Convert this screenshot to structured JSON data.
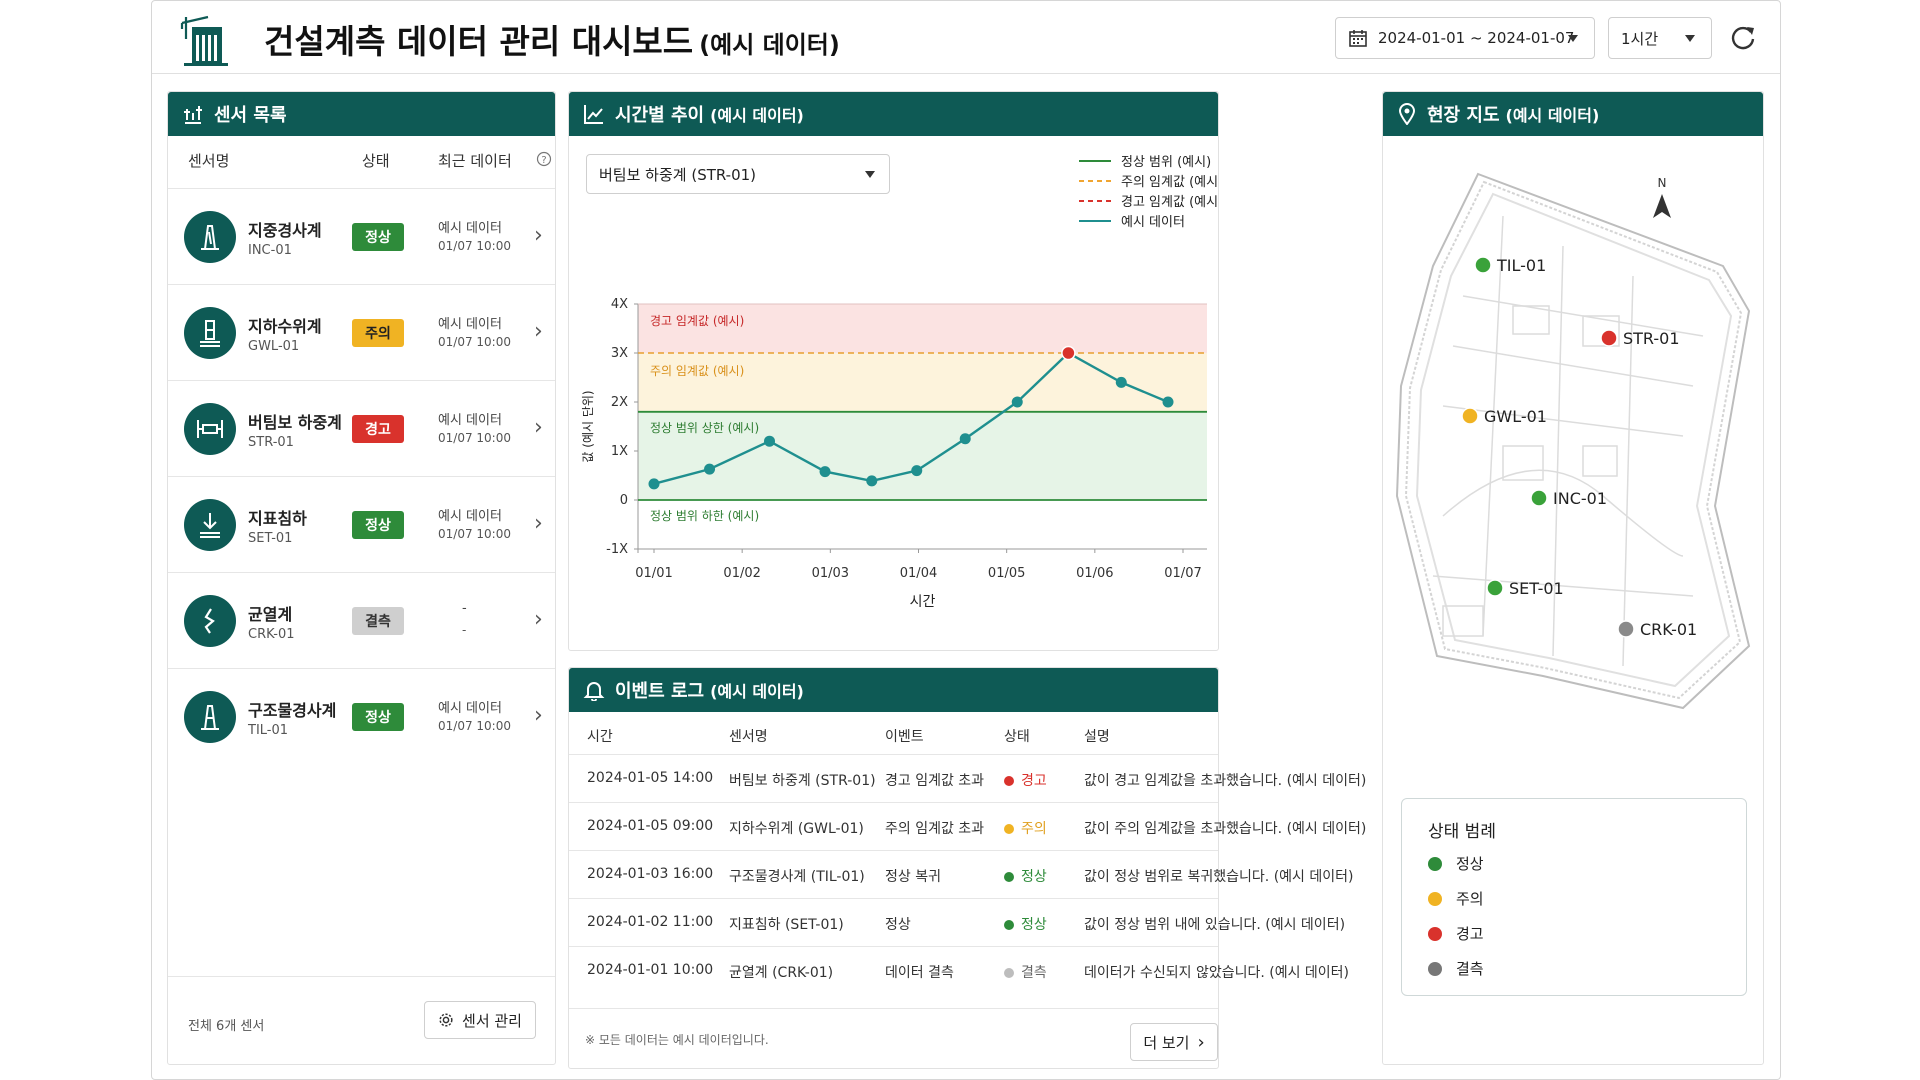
{
  "header": {
    "title": "건설계측 데이터 관리 대시보드",
    "subtitle": "(예시 데이터)",
    "date_range": "2024-01-01 ~ 2024-01-07",
    "interval": "1시간"
  },
  "sensor_panel": {
    "title": "센서 목록",
    "col_name": "센서명",
    "col_status": "상태",
    "col_recent": "최근 데이터",
    "sensors": [
      {
        "name": "지중경사계",
        "code": "INC-01",
        "status": "정상",
        "status_color": "#2e8b3a",
        "d1": "예시 데이터",
        "d2": "01/07 10:00",
        "icon": "inclinometer-icon"
      },
      {
        "name": "지하수위계",
        "code": "GWL-01",
        "status": "주의",
        "status_color": "#f0b323",
        "d1": "예시 데이터",
        "d2": "01/07 10:00",
        "icon": "water-level-icon"
      },
      {
        "name": "버팀보 하중계",
        "code": "STR-01",
        "status": "경고",
        "status_color": "#d9322c",
        "d1": "예시 데이터",
        "d2": "01/07 10:00",
        "icon": "strut-load-icon"
      },
      {
        "name": "지표침하",
        "code": "SET-01",
        "status": "정상",
        "status_color": "#2e8b3a",
        "d1": "예시 데이터",
        "d2": "01/07 10:00",
        "icon": "settlement-icon"
      },
      {
        "name": "균열계",
        "code": "CRK-01",
        "status": "결측",
        "status_color": "#cfcfcf",
        "d1": "-",
        "d2": "-",
        "icon": "crack-icon"
      },
      {
        "name": "구조물경사계",
        "code": "TIL-01",
        "status": "정상",
        "status_color": "#2e8b3a",
        "d1": "예시 데이터",
        "d2": "01/07 10:00",
        "icon": "tilt-icon"
      }
    ],
    "total": "전체 6개 센서",
    "manage_label": "센서 관리"
  },
  "chart_panel": {
    "title": "시간별 추이",
    "subtitle": "(예시 데이터)",
    "selected_sensor": "버팀보 하중계 (STR-01)"
  },
  "chart_data": {
    "type": "line",
    "x_labels": [
      "01/01",
      "01/02",
      "01/03",
      "01/04",
      "01/05",
      "01/06",
      "01/07"
    ],
    "x": [
      0.0,
      0.33,
      0.67,
      1.0,
      1.33,
      1.67,
      2.0,
      2.33,
      2.67,
      3.0,
      3.33,
      3.67,
      4.0,
      4.33,
      4.67,
      5.0,
      5.33,
      5.67,
      6.0
    ],
    "y_ticks": [
      "-1X",
      "0",
      "1X",
      "2X",
      "3X",
      "4X"
    ],
    "ylim": [
      -1,
      4
    ],
    "xlabel": "시간",
    "ylabel": "값 (예시 단위)",
    "series": [
      {
        "name": "예시 데이터",
        "color": "#1f8f8f",
        "x": [
          0.0,
          0.63,
          1.31,
          1.94,
          2.47,
          2.98,
          3.53,
          4.12,
          4.7,
          5.3,
          5.83
        ],
        "values": [
          0.33,
          0.63,
          1.2,
          0.58,
          0.39,
          0.6,
          1.25,
          2.0,
          3.0,
          2.4,
          2.0
        ]
      }
    ],
    "thresholds": {
      "normal_upper": 1.8,
      "normal_lower": 0,
      "caution": 3.0,
      "warning": 4.0
    },
    "bands": [
      {
        "label": "경고 임계값 (예시)",
        "from": 3.0,
        "to": 4.0,
        "color": "#fbe3e2"
      },
      {
        "label": "주의 임계값 (예시)",
        "from": 1.8,
        "to": 3.0,
        "color": "#fdf3dc"
      },
      {
        "label": "정상 범위 상한 (예시)",
        "from": 0,
        "to": 1.8,
        "color": "#e6f4e7"
      }
    ],
    "band_labels": {
      "warning": "경고 임계값 (예시)",
      "caution": "주의 임계값 (예시)",
      "normal_upper": "정상 범위 상한 (예시)",
      "normal_lower": "정상 범위 하한 (예시)"
    },
    "legend": [
      {
        "label": "정상 범위 (예시)",
        "color": "#2e8b3a",
        "style": "solid"
      },
      {
        "label": "주의 임계값 (예시)",
        "color": "#f0a531",
        "style": "dashed"
      },
      {
        "label": "경고 임계값 (예시)",
        "color": "#d9322c",
        "style": "dashed"
      },
      {
        "label": "예시 데이터",
        "color": "#1f8f8f",
        "style": "solid"
      }
    ],
    "legend_position": "top-right"
  },
  "event_panel": {
    "title": "이벤트 로그",
    "subtitle": "(예시 데이터)",
    "columns": [
      "시간",
      "센서명",
      "이벤트",
      "상태",
      "설명"
    ],
    "rows": [
      {
        "time": "2024-01-05 14:00",
        "sensor": "버팀보 하중계 (STR-01)",
        "event": "경고 임계값 초과",
        "status": "경고",
        "color": "#d9322c",
        "desc": "값이 경고 임계값을 초과했습니다. (예시 데이터)"
      },
      {
        "time": "2024-01-05 09:00",
        "sensor": "지하수위계 (GWL-01)",
        "event": "주의 임계값 초과",
        "status": "주의",
        "color": "#f0b323",
        "desc": "값이 주의 임계값을 초과했습니다. (예시 데이터)"
      },
      {
        "time": "2024-01-03 16:00",
        "sensor": "구조물경사계 (TIL-01)",
        "event": "정상 복귀",
        "status": "정상",
        "color": "#2e8b3a",
        "desc": "값이 정상 범위로 복귀했습니다. (예시 데이터)"
      },
      {
        "time": "2024-01-02 11:00",
        "sensor": "지표침하 (SET-01)",
        "event": "정상",
        "status": "정상",
        "color": "#2e8b3a",
        "desc": "값이 정상 범위 내에 있습니다. (예시 데이터)"
      },
      {
        "time": "2024-01-01 10:00",
        "sensor": "균열계 (CRK-01)",
        "event": "데이터 결측",
        "status": "결측",
        "color": "#bdbdbd",
        "desc": "데이터가 수신되지 않았습니다. (예시 데이터)"
      }
    ],
    "note": "※ 모든 데이터는 예시 데이터입니다.",
    "more_label": "더 보기"
  },
  "map_panel": {
    "title": "현장 지도",
    "subtitle": "(예시 데이터)",
    "north": "N",
    "markers": [
      {
        "label": "TIL-01",
        "color": "#3aa23a"
      },
      {
        "label": "STR-01",
        "color": "#d9322c"
      },
      {
        "label": "GWL-01",
        "color": "#f0b323"
      },
      {
        "label": "INC-01",
        "color": "#3aa23a"
      },
      {
        "label": "SET-01",
        "color": "#3aa23a"
      },
      {
        "label": "CRK-01",
        "color": "#8a8a8a"
      }
    ],
    "legend_title": "상태 범례",
    "legend": [
      {
        "label": "정상",
        "color": "#2e8b3a"
      },
      {
        "label": "주의",
        "color": "#f0b323"
      },
      {
        "label": "경고",
        "color": "#d9322c"
      },
      {
        "label": "결측",
        "color": "#777777"
      }
    ]
  }
}
